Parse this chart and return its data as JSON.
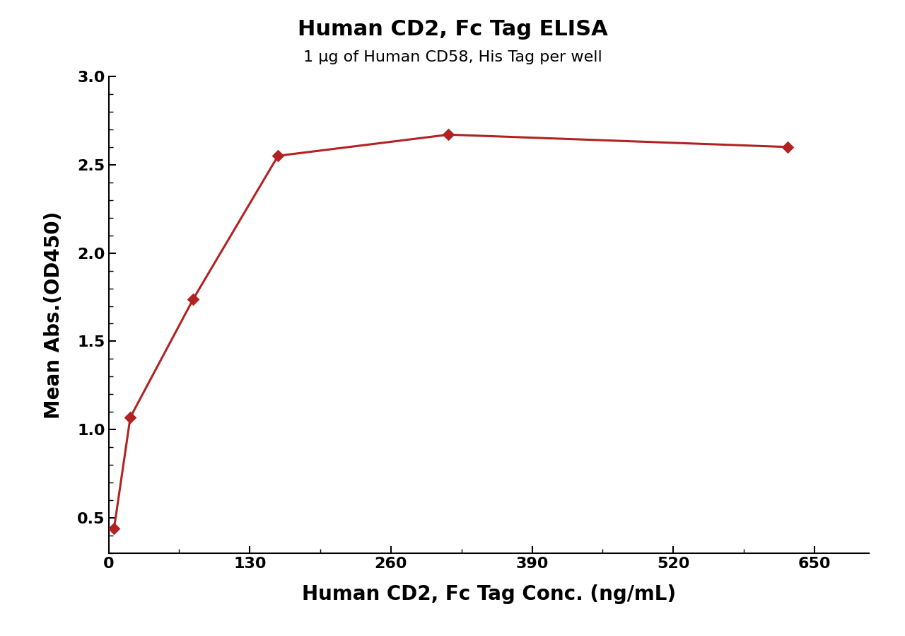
{
  "title": "Human CD2, Fc Tag ELISA",
  "subtitle": "1 μg of Human CD58, His Tag per well",
  "xlabel": "Human CD2, Fc Tag Conc. (ng/mL)",
  "ylabel": "Mean Abs.(OD450)",
  "data_x": [
    5,
    20,
    78,
    156,
    313,
    625
  ],
  "data_y": [
    0.44,
    1.07,
    1.74,
    2.55,
    2.67,
    2.6
  ],
  "color": "#B22222",
  "xlim": [
    0,
    700
  ],
  "ylim_bottom": 0.3,
  "ylim_top": 3.0,
  "xticks": [
    0,
    130,
    260,
    390,
    520,
    650
  ],
  "yticks": [
    0.5,
    1.0,
    1.5,
    2.0,
    2.5,
    3.0
  ],
  "marker": "D",
  "markersize": 9,
  "linewidth": 2.2,
  "title_fontsize": 22,
  "subtitle_fontsize": 16,
  "axis_label_fontsize": 20,
  "tick_fontsize": 16,
  "background_color": "#ffffff"
}
